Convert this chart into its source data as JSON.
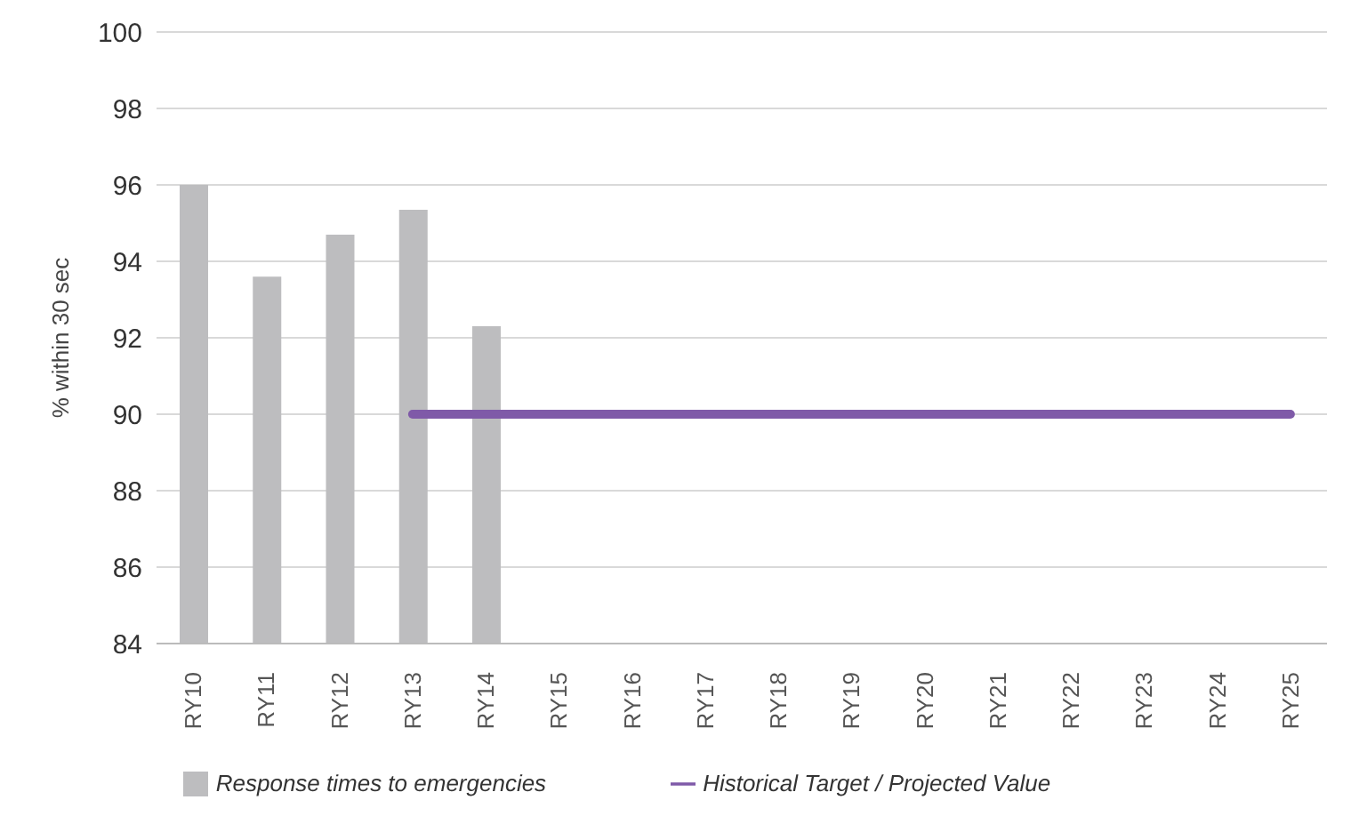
{
  "chart_data": {
    "type": "bar",
    "ylabel": "% within 30 sec",
    "categories": [
      "RY10",
      "RY11",
      "RY12",
      "RY13",
      "RY14",
      "RY15",
      "RY16",
      "RY17",
      "RY18",
      "RY19",
      "RY20",
      "RY21",
      "RY22",
      "RY23",
      "RY24",
      "RY25"
    ],
    "series": [
      {
        "name": "Response times to emergencies",
        "color": "#bdbdbf",
        "values": [
          96,
          93.6,
          94.7,
          95.35,
          92.3,
          null,
          null,
          null,
          null,
          null,
          null,
          null,
          null,
          null,
          null,
          null
        ]
      },
      {
        "name": "Historical Target / Projected Value",
        "type": "line",
        "color": "#7f5aa8",
        "values": [
          null,
          null,
          null,
          90,
          90,
          90,
          90,
          90,
          90,
          90,
          90,
          90,
          90,
          90,
          90,
          90
        ]
      }
    ],
    "ylim": [
      84,
      100
    ],
    "yticks": [
      84,
      86,
      88,
      90,
      92,
      94,
      96,
      98,
      100
    ],
    "grid": "y",
    "legend": "bottom",
    "marker": "none"
  }
}
